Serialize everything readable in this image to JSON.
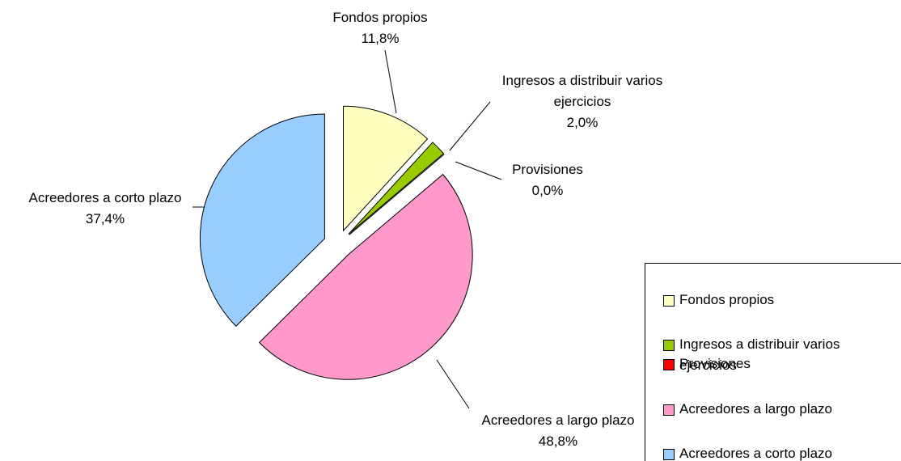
{
  "chart_data": {
    "type": "pie",
    "categories": [
      "Fondos propios",
      "Ingresos a distribuir varios ejercicios",
      "Provisiones",
      "Acreedores a largo plazo",
      "Acreedores a corto plazo"
    ],
    "values": [
      11.8,
      2.0,
      0.0,
      48.8,
      37.4
    ],
    "value_labels": [
      "11,8%",
      "2,0%",
      "0,0%",
      "48,8%",
      "37,4%"
    ],
    "colors": [
      "#ffffc0",
      "#99cc00",
      "#ff0000",
      "#ff99cc",
      "#99ccff"
    ],
    "legend": "right"
  }
}
